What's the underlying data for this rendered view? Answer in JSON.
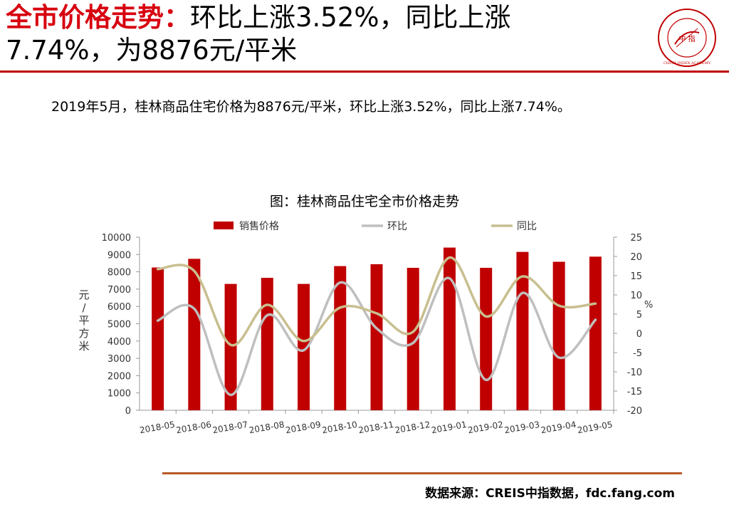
{
  "header": {
    "title_highlight": "全市价格走势：",
    "title_line1": "环比上涨3.52%，同比上涨",
    "title_line2": "7.74%，为8876元/平米",
    "logo_text_outer": "CHINA INDEX ACADEMY",
    "logo_text_inner": "中 指",
    "colors": {
      "highlight": "#d7000f",
      "rule": "#c00000"
    }
  },
  "summary": "2019年5月，桂林商品住宅价格为8876元/平米，环比上涨3.52%，同比上涨7.74%。",
  "chart_data": {
    "type": "bar",
    "title": "图：桂林商品住宅全市价格走势",
    "categories": [
      "2018-05",
      "2018-06",
      "2018-07",
      "2018-08",
      "2018-09",
      "2018-10",
      "2018-11",
      "2018-12",
      "2019-01",
      "2019-02",
      "2019-03",
      "2019-04",
      "2019-05"
    ],
    "ylabel": "元/平方米",
    "y2label": "%",
    "ylim": [
      0,
      10000
    ],
    "y2lim": [
      -20,
      25
    ],
    "yticks": [
      0,
      1000,
      2000,
      3000,
      4000,
      5000,
      6000,
      7000,
      8000,
      9000,
      10000
    ],
    "y2ticks": [
      -20,
      -15,
      -10,
      -5,
      0,
      5,
      10,
      15,
      20,
      25
    ],
    "legend_position": "top",
    "grid": false,
    "series": [
      {
        "name": "销售价格",
        "type": "bar",
        "axis": "left",
        "color": "#c00000",
        "values": [
          8250,
          8750,
          7300,
          7650,
          7300,
          8330,
          8440,
          8230,
          9400,
          8230,
          9150,
          8580,
          8876
        ]
      },
      {
        "name": "环比",
        "type": "line",
        "axis": "right",
        "color": "#bfbfbf",
        "values": [
          3.3,
          6.4,
          -16.0,
          4.7,
          -4.4,
          13.2,
          1.3,
          -2.5,
          14.3,
          -12.1,
          10.5,
          -6.3,
          3.52
        ]
      },
      {
        "name": "同比",
        "type": "line",
        "axis": "right",
        "color": "#c8bf8f",
        "values": [
          16.7,
          16.2,
          -3.0,
          7.4,
          -2.0,
          6.7,
          5.2,
          0.4,
          19.7,
          4.4,
          14.8,
          7.2,
          7.74
        ]
      }
    ]
  },
  "footer": {
    "source": "数据来源：CREIS中指数据，fdc.fang.com"
  }
}
